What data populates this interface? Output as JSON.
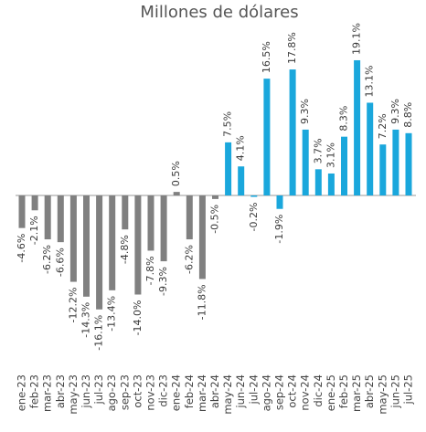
{
  "chart_data": {
    "type": "bar",
    "title": "Millones de dólares",
    "categories": [
      "ene-23",
      "feb-23",
      "mar-23",
      "abr-23",
      "may-23",
      "jun-23",
      "jul-23",
      "ago-23",
      "sep-23",
      "oct-23",
      "nov-23",
      "dic-23",
      "ene-24",
      "feb-24",
      "mar-24",
      "abr-24",
      "may-24",
      "jun-24",
      "jul-24",
      "ago-24",
      "sep-24",
      "oct-24",
      "nov-24",
      "dic-24",
      "ene-25",
      "feb-25",
      "mar-25",
      "abr-25",
      "may-25",
      "jun-25",
      "jul-25"
    ],
    "values": [
      -4.6,
      -2.1,
      -6.2,
      -6.6,
      -12.2,
      -14.3,
      -16.1,
      -13.4,
      -4.8,
      -14.0,
      -7.8,
      -9.3,
      0.5,
      -6.2,
      -11.8,
      -0.5,
      7.5,
      4.1,
      -0.2,
      16.5,
      -1.9,
      17.8,
      9.3,
      3.7,
      3.1,
      8.3,
      19.1,
      13.1,
      7.2,
      9.3,
      8.8
    ],
    "value_labels": [
      "-4.6%",
      "-2.1%",
      "-6.2%",
      "-6.6%",
      "-12.2%",
      "-14.3%",
      "-16.1%",
      "-13.4%",
      "-4.8%",
      "-14.0%",
      "-7.8%",
      "-9.3%",
      "0.5%",
      "-6.2%",
      "-11.8%",
      "-0.5%",
      "7.5%",
      "4.1%",
      "-0.2%",
      "16.5%",
      "-1.9%",
      "17.8%",
      "9.3%",
      "3.7%",
      "3.1%",
      "8.3%",
      "19.1%",
      "13.1%",
      "7.2%",
      "9.3%",
      "8.8%"
    ],
    "colors": [
      "#808080",
      "#808080",
      "#808080",
      "#808080",
      "#808080",
      "#808080",
      "#808080",
      "#808080",
      "#808080",
      "#808080",
      "#808080",
      "#808080",
      "#808080",
      "#808080",
      "#808080",
      "#808080",
      "#1aa7dc",
      "#1aa7dc",
      "#1aa7dc",
      "#1aa7dc",
      "#1aa7dc",
      "#1aa7dc",
      "#1aa7dc",
      "#1aa7dc",
      "#1aa7dc",
      "#1aa7dc",
      "#1aa7dc",
      "#1aa7dc",
      "#1aa7dc",
      "#1aa7dc",
      "#1aa7dc"
    ],
    "ylim": [
      -20,
      20
    ]
  }
}
